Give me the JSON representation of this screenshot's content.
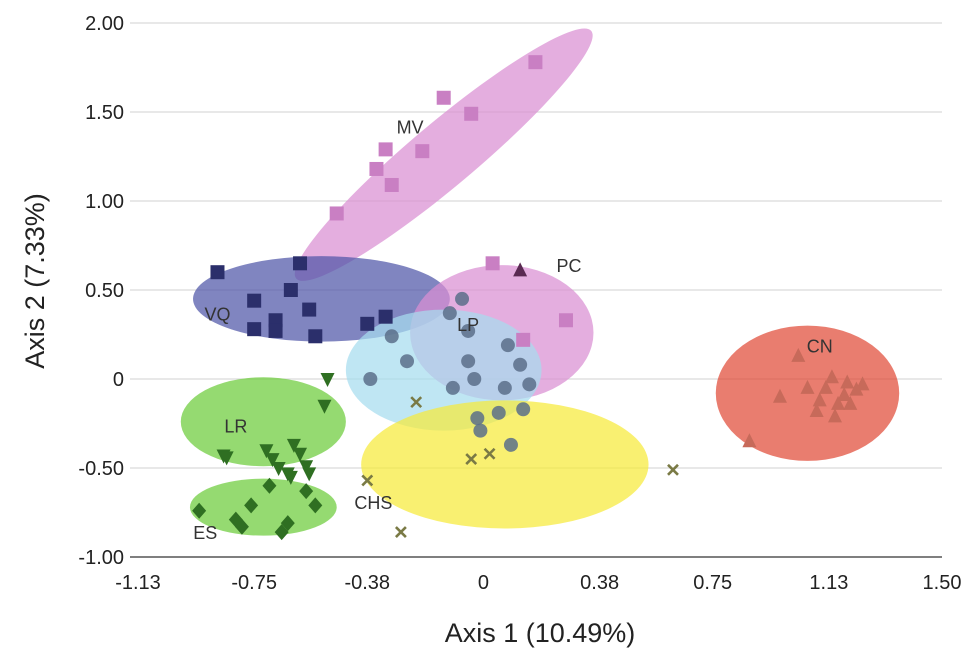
{
  "chart_data": {
    "type": "scatter",
    "title": "",
    "xlabel": "Axis 1 (10.49%)",
    "ylabel": "Axis 2 (7.33%)",
    "xlim": [
      -1.13,
      1.5
    ],
    "ylim": [
      -1.0,
      2.0
    ],
    "x_ticks": [
      "-1.13",
      "-0.75",
      "-0.38",
      "0",
      "0.38",
      "0.75",
      "1.13",
      "1.50"
    ],
    "y_ticks": [
      "-1.00",
      "-0.50",
      "0",
      "0.50",
      "1.00",
      "1.50",
      "2.00"
    ],
    "grid": "horizontal",
    "groups": [
      {
        "name": "MV",
        "marker": "square",
        "color": "#c97fc3",
        "ellipse_color": "#d98fd3",
        "label": {
          "x": -0.24,
          "y": 1.38
        },
        "ellipse": {
          "cx": -0.13,
          "cy": 1.26,
          "rx": 0.63,
          "ry": 0.18,
          "angle": -40
        },
        "points": [
          [
            -0.48,
            0.93
          ],
          [
            -0.35,
            1.18
          ],
          [
            -0.32,
            1.29
          ],
          [
            -0.3,
            1.09
          ],
          [
            -0.2,
            1.28
          ],
          [
            -0.13,
            1.58
          ],
          [
            -0.04,
            1.49
          ],
          [
            0.17,
            1.78
          ]
        ]
      },
      {
        "name": "VQ",
        "marker": "square",
        "color": "#2b2f6b",
        "ellipse_color": "#4f56a8",
        "label": {
          "x": -0.87,
          "y": 0.33
        },
        "ellipse": {
          "cx": -0.53,
          "cy": 0.45,
          "rx": 0.42,
          "ry": 0.24,
          "angle": 0
        },
        "points": [
          [
            -0.87,
            0.6
          ],
          [
            -0.75,
            0.44
          ],
          [
            -0.75,
            0.28
          ],
          [
            -0.68,
            0.33
          ],
          [
            -0.68,
            0.27
          ],
          [
            -0.63,
            0.5
          ],
          [
            -0.6,
            0.65
          ],
          [
            -0.57,
            0.39
          ],
          [
            -0.55,
            0.24
          ],
          [
            -0.38,
            0.31
          ],
          [
            -0.32,
            0.35
          ]
        ]
      },
      {
        "name": "PC",
        "marker": "square",
        "color": "#c97fc3",
        "ellipse_color": "#d98fd3",
        "label": {
          "x": 0.28,
          "y": 0.6
        },
        "ellipse": {
          "cx": 0.06,
          "cy": 0.26,
          "rx": 0.3,
          "ry": 0.38,
          "angle": 0
        },
        "points": [
          [
            0.03,
            0.65
          ],
          [
            0.13,
            0.22
          ],
          [
            0.27,
            0.33
          ]
        ]
      },
      {
        "name": "PC-triangle",
        "marker": "triangle",
        "color": "#5a2a52",
        "ellipse_color": "#d98fd3",
        "label": {
          "x": 0.0,
          "y": 0.0
        },
        "ellipse": {
          "cx": 0.0,
          "cy": 0.0,
          "rx": 0.0,
          "ry": 0.0,
          "angle": 0
        },
        "points": [
          [
            0.12,
            0.61
          ]
        ]
      },
      {
        "name": "LP",
        "marker": "circle",
        "color": "#5a6f8a",
        "ellipse_color": "#a6dcef",
        "label": {
          "x": -0.05,
          "y": 0.27
        },
        "ellipse": {
          "cx": -0.13,
          "cy": 0.05,
          "rx": 0.32,
          "ry": 0.34,
          "angle": 0
        },
        "points": [
          [
            -0.37,
            -0.0
          ],
          [
            -0.3,
            0.24
          ],
          [
            -0.25,
            0.1
          ],
          [
            -0.11,
            0.37
          ],
          [
            -0.1,
            -0.05
          ],
          [
            -0.07,
            0.45
          ],
          [
            -0.05,
            0.1
          ],
          [
            -0.05,
            0.27
          ],
          [
            -0.03,
            0.0
          ],
          [
            -0.02,
            -0.22
          ],
          [
            -0.01,
            -0.29
          ],
          [
            0.05,
            -0.19
          ],
          [
            0.07,
            -0.05
          ],
          [
            0.08,
            0.19
          ],
          [
            0.09,
            -0.37
          ],
          [
            0.12,
            0.08
          ],
          [
            0.13,
            -0.17
          ],
          [
            0.15,
            -0.03
          ]
        ]
      },
      {
        "name": "CHS",
        "marker": "x",
        "color": "#7a7a45",
        "ellipse_color": "#f7ea3a",
        "label": {
          "x": -0.36,
          "y": -0.73
        },
        "ellipse": {
          "cx": 0.07,
          "cy": -0.48,
          "rx": 0.47,
          "ry": 0.36,
          "angle": 0
        },
        "points": [
          [
            -0.38,
            -0.57
          ],
          [
            -0.27,
            -0.86
          ],
          [
            -0.22,
            -0.13
          ],
          [
            -0.04,
            -0.45
          ],
          [
            0.02,
            -0.42
          ],
          [
            0.62,
            -0.51
          ]
        ]
      },
      {
        "name": "LR",
        "marker": "triangle-down",
        "color": "#2f6f22",
        "ellipse_color": "#6ccc3a",
        "label": {
          "x": -0.81,
          "y": -0.3
        },
        "ellipse": {
          "cx": -0.72,
          "cy": -0.24,
          "rx": 0.27,
          "ry": 0.25,
          "angle": 0
        },
        "points": [
          [
            -0.85,
            -0.43
          ],
          [
            -0.84,
            -0.44
          ],
          [
            -0.71,
            -0.4
          ],
          [
            -0.69,
            -0.45
          ],
          [
            -0.67,
            -0.5
          ],
          [
            -0.64,
            -0.53
          ],
          [
            -0.63,
            -0.55
          ],
          [
            -0.62,
            -0.37
          ],
          [
            -0.6,
            -0.42
          ],
          [
            -0.58,
            -0.49
          ],
          [
            -0.57,
            -0.53
          ],
          [
            -0.52,
            -0.15
          ],
          [
            -0.51,
            0.0
          ]
        ]
      },
      {
        "name": "ES",
        "marker": "diamond",
        "color": "#2f6f22",
        "ellipse_color": "#6ccc3a",
        "label": {
          "x": -0.91,
          "y": -0.9
        },
        "ellipse": {
          "cx": -0.72,
          "cy": -0.72,
          "rx": 0.24,
          "ry": 0.16,
          "angle": 0
        },
        "points": [
          [
            -0.93,
            -0.74
          ],
          [
            -0.81,
            -0.79
          ],
          [
            -0.79,
            -0.83
          ],
          [
            -0.76,
            -0.71
          ],
          [
            -0.7,
            -0.6
          ],
          [
            -0.66,
            -0.86
          ],
          [
            -0.64,
            -0.81
          ],
          [
            -0.58,
            -0.63
          ],
          [
            -0.55,
            -0.71
          ]
        ]
      },
      {
        "name": "CN",
        "marker": "triangle",
        "color": "#c76a5a",
        "ellipse_color": "#e04b37",
        "label": {
          "x": 1.1,
          "y": 0.15
        },
        "ellipse": {
          "cx": 1.06,
          "cy": -0.08,
          "rx": 0.3,
          "ry": 0.38,
          "angle": 0
        },
        "points": [
          [
            0.87,
            -0.35
          ],
          [
            0.97,
            -0.1
          ],
          [
            1.03,
            0.13
          ],
          [
            1.06,
            -0.05
          ],
          [
            1.09,
            -0.18
          ],
          [
            1.1,
            -0.12
          ],
          [
            1.12,
            -0.05
          ],
          [
            1.14,
            0.01
          ],
          [
            1.15,
            -0.21
          ],
          [
            1.16,
            -0.14
          ],
          [
            1.18,
            -0.09
          ],
          [
            1.19,
            -0.02
          ],
          [
            1.2,
            -0.14
          ],
          [
            1.22,
            -0.06
          ],
          [
            1.24,
            -0.03
          ]
        ]
      }
    ]
  }
}
